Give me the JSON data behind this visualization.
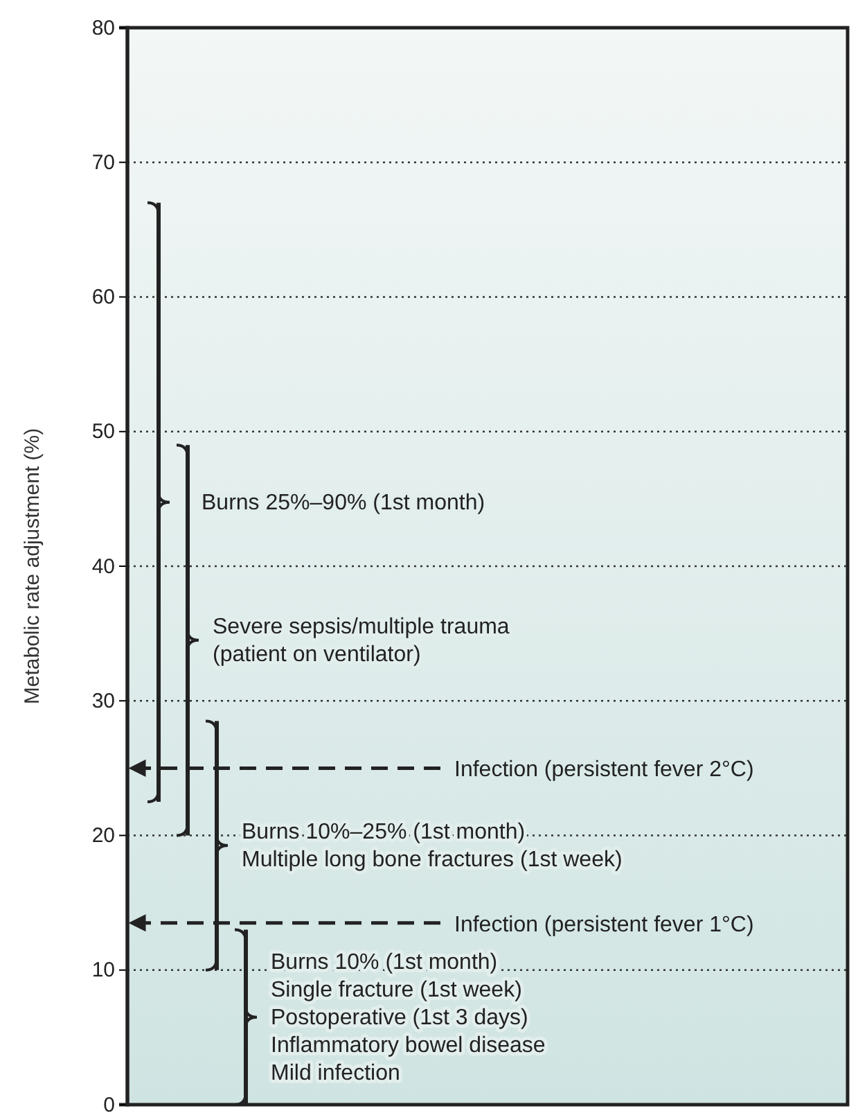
{
  "chart_data": {
    "type": "bar",
    "ylabel": "Metabolic rate adjustment (%)",
    "categories": [
      null,
      null,
      null,
      null
    ],
    "base": [
      22.5,
      20,
      10,
      0
    ],
    "values": [
      44.5,
      29,
      18.5,
      13
    ],
    "color": "#222222",
    "ylim": [
      0,
      80
    ],
    "yticks": [
      0,
      10,
      20,
      30,
      40,
      50,
      60,
      70,
      80
    ],
    "grid": "y",
    "annotations": [
      "Burns 25%–90% (1st month)",
      "Severe sepsis/multiple trauma\n(patient on ventilator)",
      "Burns 10%–25% (1st month)\nMultiple long bone fractures (1st week)",
      "Burns 10% (1st month)\nSingle fracture (1st week)\nPostoperative (1st 3 days)\nInflammatory bowel disease\nMild infection"
    ],
    "ref_lines": [
      {
        "axis": "y",
        "value": 25,
        "label": "Infection (persistent fever 2°C)",
        "line_style": "dashed"
      },
      {
        "axis": "y",
        "value": 13.5,
        "label": "Infection (persistent fever 1°C)",
        "line_style": "dashed"
      }
    ]
  }
}
